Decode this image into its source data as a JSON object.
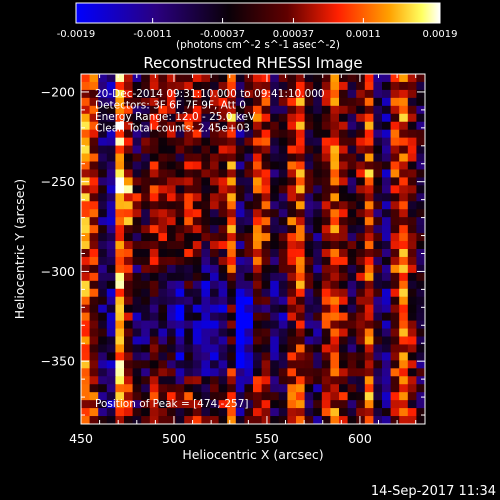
{
  "chart_data": {
    "type": "heatmap",
    "title": "Reconstructed RHESSI Image",
    "xlabel": "Heliocentric X (arcsec)",
    "ylabel": "Heliocentric Y (arcsec)",
    "xlim": [
      450,
      635
    ],
    "ylim": [
      -385,
      -190
    ],
    "x_ticks": [
      450,
      500,
      550,
      600
    ],
    "y_ticks": [
      -200,
      -250,
      -300,
      -350
    ],
    "colorbar": {
      "min": -0.0019,
      "max": 0.0019,
      "ticks": [
        "-0.0019",
        "-0.0011",
        "-0.00037",
        "0.00037",
        "0.0011",
        "0.0019"
      ],
      "units": "(photons cm^-2 s^-1 asec^-2)",
      "colormap": "blue-black-red-yellow-white"
    },
    "annotations": [
      "20-Dec-2014 09:31:10.000 to 09:41:10.000",
      "Detectors: 3F 6F 7F 9F, Att 0",
      "Energy Range: 12.0 - 25.0 keV",
      "Clean     Total counts: 2.45e+03"
    ],
    "peak_label": "Position of Peak = [474,-257]",
    "peak": [
      474,
      -257
    ]
  },
  "footer": {
    "timestamp": "14-Sep-2017 11:34"
  },
  "colors": {
    "background": "#000000",
    "foreground": "#ffffff"
  }
}
